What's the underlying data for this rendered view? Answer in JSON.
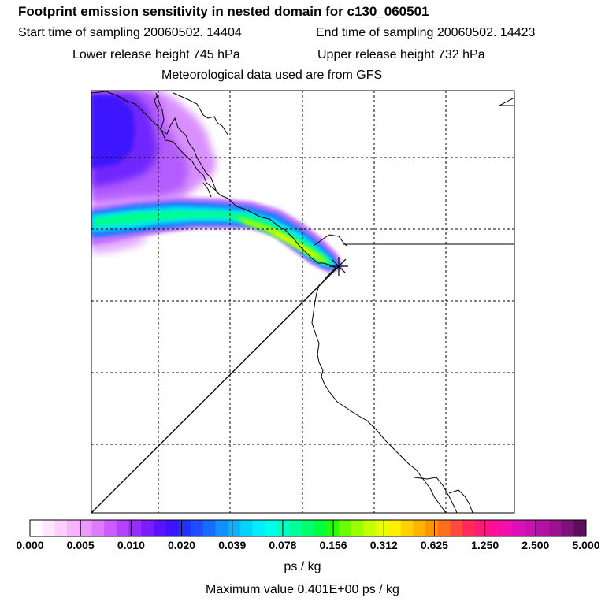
{
  "header": {
    "title": "Footprint emission sensitivity in nested domain for c130_060501",
    "start_label": "Start time of sampling 20060502. 14404",
    "end_label": "End time of sampling 20060502. 14423",
    "lower_label": "Lower release height  745 hPa",
    "upper_label": "Upper release height  732 hPa",
    "met_label": "Meteorological data used are from GFS"
  },
  "legend": {
    "ticks": [
      "0.000",
      "0.005",
      "0.010",
      "0.020",
      "0.039",
      "0.078",
      "0.156",
      "0.312",
      "0.625",
      "1.250",
      "2.500",
      "5.000"
    ],
    "colors": [
      "#ffffff",
      "#ffe8ff",
      "#ffcfff",
      "#f8b4ff",
      "#ee99ff",
      "#dd7cff",
      "#cc5cff",
      "#b541ff",
      "#9a2aff",
      "#7d1bff",
      "#5a13ff",
      "#3b15ff",
      "#2430ff",
      "#1d4dff",
      "#166cff",
      "#1290ff",
      "#0bb0ff",
      "#04d2ff",
      "#00eeff",
      "#00ffe8",
      "#00ffc4",
      "#00ff9a",
      "#00ff6a",
      "#00ff3c",
      "#27ff00",
      "#6aff00",
      "#9cff00",
      "#c6ff00",
      "#e8ff00",
      "#fff000",
      "#ffd200",
      "#ffb400",
      "#ff9400",
      "#ff6e1a",
      "#ff4a3c",
      "#ff2a5a",
      "#ff1a78",
      "#ff0f95",
      "#f20fac",
      "#dc10b6",
      "#c812b0",
      "#b212a4",
      "#9a1290",
      "#7e127a",
      "#5e0f5c"
    ],
    "units": "ps / kg",
    "max_value_text": "Maximum value  0.401E+00 ps / kg"
  },
  "map": {
    "receptor_icon": "asterisk-receptor-icon"
  }
}
